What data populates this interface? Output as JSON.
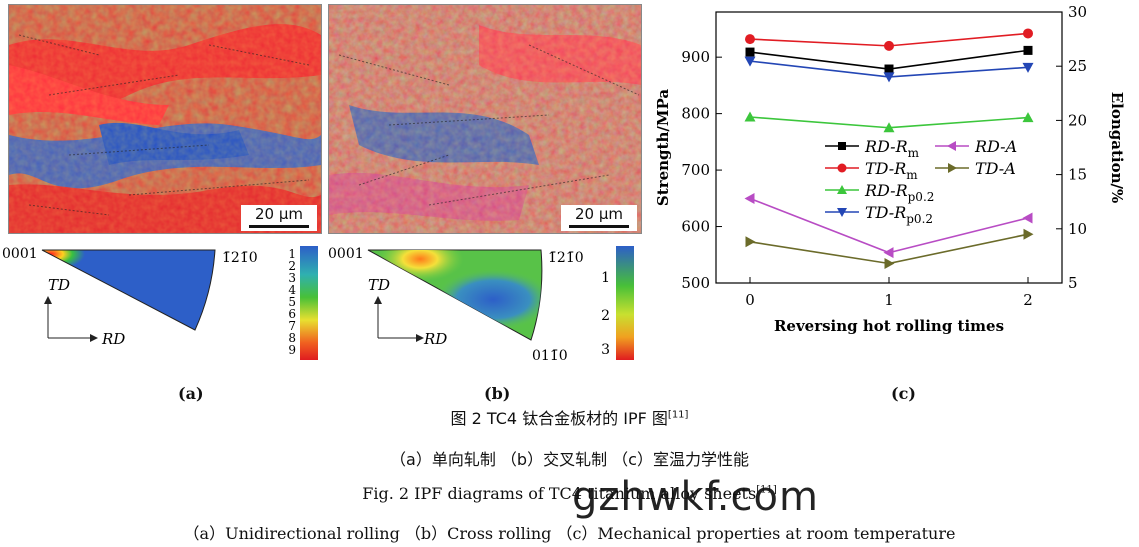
{
  "panel_a": {
    "scale_text": "20 μm",
    "ipf_labels": [
      "0001",
      "1̄21̄0"
    ],
    "axis_td": "TD",
    "axis_rd": "RD",
    "colorbar_ticks": [
      "1",
      "2",
      "3",
      "4",
      "5",
      "6",
      "7",
      "8",
      "9"
    ],
    "label": "(a)"
  },
  "panel_b": {
    "scale_text": "20 μm",
    "ipf_labels": [
      "0001",
      "1̄21̄0",
      "011̄0"
    ],
    "axis_td": "TD",
    "axis_rd": "RD",
    "colorbar_ticks": [
      "1",
      "2",
      "3"
    ],
    "label": "(b)"
  },
  "panel_c": {
    "label": "(c)"
  },
  "chart_data": {
    "type": "line",
    "x": [
      0,
      1,
      2
    ],
    "xlabel": "Reversing hot rolling times",
    "ylabel_left": "Strength/MPa",
    "ylabel_right": "Elongation/%",
    "ylim_left": [
      500,
      980
    ],
    "ylim_right": [
      5,
      30
    ],
    "yticks_left": [
      500,
      600,
      700,
      800,
      900
    ],
    "yticks_right": [
      5,
      10,
      15,
      20,
      25,
      30
    ],
    "legend_placement": "center-left",
    "series": [
      {
        "name": "RD-Rm",
        "axis": "left",
        "values": [
          909,
          879,
          912
        ],
        "color": "#000000",
        "marker": "square"
      },
      {
        "name": "TD-Rm",
        "axis": "left",
        "values": [
          932,
          920,
          942
        ],
        "color": "#e11c23",
        "marker": "circle"
      },
      {
        "name": "RD-Rp0.2",
        "axis": "left",
        "values": [
          794,
          775,
          793
        ],
        "color": "#3cc63c",
        "marker": "triangle-up"
      },
      {
        "name": "TD-Rp0.2",
        "axis": "left",
        "values": [
          893,
          865,
          882
        ],
        "color": "#2346b5",
        "marker": "triangle-down"
      },
      {
        "name": "RD-A",
        "axis": "right",
        "values": [
          12.8,
          7.8,
          11.0
        ],
        "color": "#b84cc4",
        "marker": "triangle-left"
      },
      {
        "name": "TD-A",
        "axis": "right",
        "values": [
          8.8,
          6.8,
          9.5
        ],
        "color": "#6b6b2a",
        "marker": "triangle-right"
      }
    ]
  },
  "captions": {
    "cn_title": "图 2   TC4 钛合金板材的 IPF 图",
    "cn_title_ref": "[11]",
    "cn_sub": "（a）单向轧制    （b）交叉轧制    （c）室温力学性能",
    "en_title": "Fig. 2   IPF diagrams of TC4 titanium alloy sheets",
    "en_title_ref": "[11]",
    "en_sub": "（a）Unidirectional rolling    （b）Cross rolling    （c）Mechanical properties at room temperature",
    "watermark": "gzhwkf.com"
  }
}
